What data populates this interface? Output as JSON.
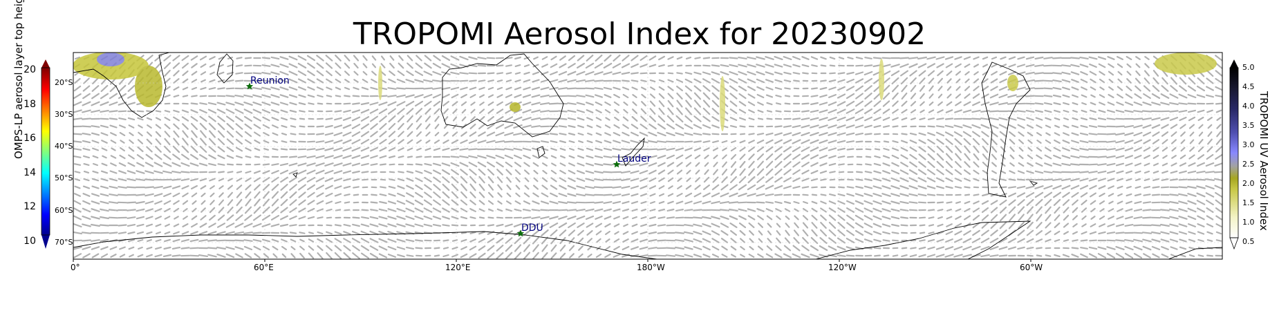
{
  "title": "TROPOMI Aerosol Index for 20230902",
  "left_colorbar": {
    "label": "OMPS-LP aerosol layer top height (km)",
    "ticks": [
      "20",
      "18",
      "16",
      "14",
      "12",
      "10"
    ],
    "range": [
      9.5,
      21
    ],
    "colormap": "jet"
  },
  "right_colorbar": {
    "label": "TROPOMI UV Aerosol Index",
    "ticks": [
      "5.0",
      "4.5",
      "4.0",
      "3.5",
      "3.0",
      "2.5",
      "2.0",
      "1.5",
      "1.0",
      "0.5"
    ],
    "range": [
      0.5,
      5.0
    ]
  },
  "lat_labels": [
    "20°S",
    "30°S",
    "40°S",
    "50°S",
    "60°S",
    "70°S"
  ],
  "lon_labels": [
    "0°",
    "60°E",
    "120°E",
    "180°W",
    "120°W",
    "60°W"
  ],
  "sites": [
    {
      "name": "Reunion",
      "lon": 55.5,
      "lat": -21.1
    },
    {
      "name": "Lauder",
      "lon": 169.7,
      "lat": -45.0
    },
    {
      "name": "DDU",
      "lon": 140.0,
      "lat": -66.7
    }
  ],
  "colors": {
    "site_marker": "#0a6b0a",
    "site_label": "#00007f",
    "arrows": "#b0b0b0",
    "coast": "#000000"
  }
}
